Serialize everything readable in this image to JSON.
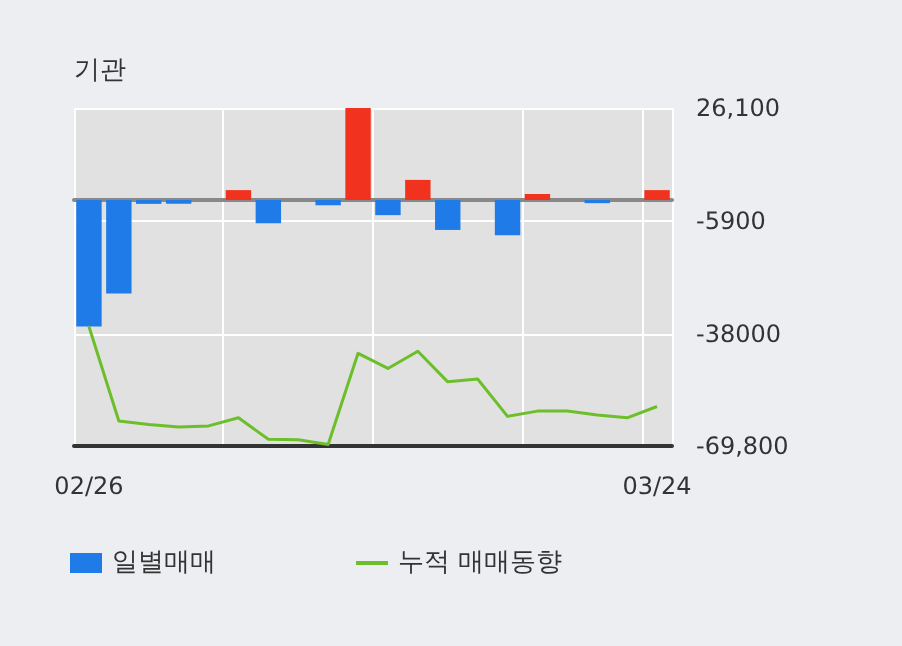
{
  "chart_data": {
    "type": "bar",
    "title": "기관",
    "categories": [
      "02/26",
      null,
      null,
      null,
      null,
      null,
      null,
      null,
      null,
      null,
      null,
      null,
      null,
      null,
      null,
      null,
      null,
      null,
      null,
      "03/24"
    ],
    "series": [
      {
        "name": "일별매매",
        "color": "#1e7be8",
        "colors": [
          "#1e7be8",
          "#1e7be8",
          "#1e7be8",
          "#1e7be8",
          "#1e7be8",
          "#f0321e",
          "#1e7be8",
          "#1e7be8",
          "#1e7be8",
          "#f0321e",
          "#1e7be8",
          "#f0321e",
          "#1e7be8",
          "#1e7be8",
          "#1e7be8",
          "#f0321e",
          "#1e7be8",
          "#1e7be8",
          "#1e7be8",
          "#f0321e"
        ],
        "values": [
          -35900,
          -26500,
          -1100,
          -1100,
          0,
          2800,
          -6600,
          0,
          -1500,
          26100,
          -4300,
          5700,
          -8500,
          0,
          -10000,
          1700,
          0,
          -900,
          0,
          2800
        ]
      },
      {
        "name": "누적 매매동향",
        "type": "line",
        "color": "#6cbf2a",
        "values": [
          -35900,
          -62700,
          -63700,
          -64400,
          -64100,
          -61800,
          -67900,
          -68000,
          -69400,
          -43500,
          -47800,
          -42900,
          -51600,
          -50800,
          -61400,
          -59900,
          -59900,
          -61000,
          -61800,
          -58600
        ]
      }
    ],
    "ylim": [
      -69800,
      26100
    ],
    "yticks": [
      {
        "value": 26100,
        "label": "26,100"
      },
      -5900,
      -38000,
      {
        "value": -69800,
        "label": "-69,800"
      }
    ],
    "grid": true,
    "legend": "bottom left",
    "marker": "none"
  }
}
